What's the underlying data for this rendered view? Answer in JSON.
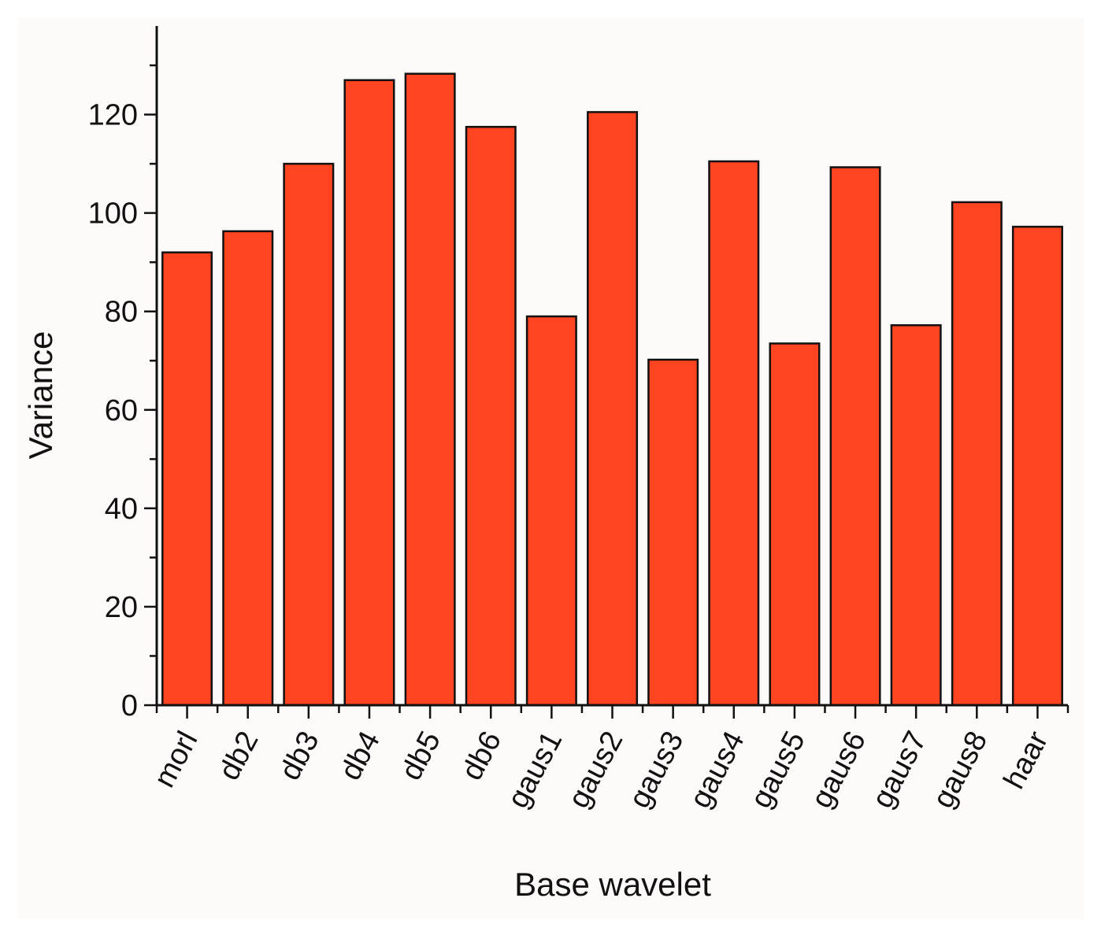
{
  "chart_data": {
    "type": "bar",
    "title": "",
    "xlabel": "Base wavelet",
    "ylabel": "Variance",
    "categories": [
      "morl",
      "db2",
      "db3",
      "db4",
      "db5",
      "db6",
      "gaus1",
      "gaus2",
      "gaus3",
      "gaus4",
      "gaus5",
      "gaus6",
      "gaus7",
      "gaus8",
      "haar"
    ],
    "values": [
      92,
      96.3,
      110,
      127,
      128.3,
      117.5,
      79,
      120.5,
      70.2,
      110.5,
      73.5,
      109.3,
      77.2,
      102.2,
      97.2
    ],
    "ylim": [
      0,
      138
    ],
    "yticks": [
      0,
      20,
      40,
      60,
      80,
      100,
      120
    ],
    "ytick_labels": [
      "0",
      "20",
      "40",
      "60",
      "80",
      "100",
      "120"
    ],
    "bar_color": "#ff4422",
    "grid": false,
    "legend": "none"
  }
}
